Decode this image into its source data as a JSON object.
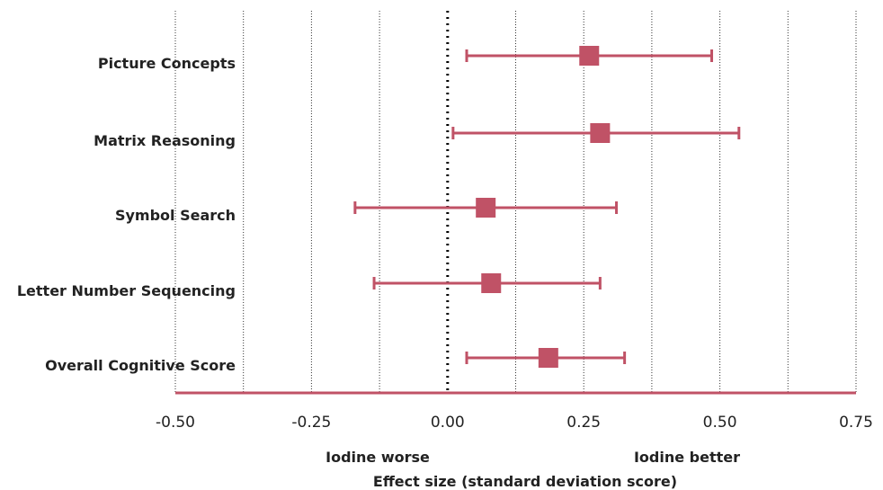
{
  "chart_data": {
    "type": "forest",
    "title": "",
    "xlabel": "Effect size (standard deviation score)",
    "ylabel": "",
    "xlim": [
      -0.5,
      0.75
    ],
    "xticks": [
      "-0.50",
      "-0.25",
      "0.00",
      "0.25",
      "0.50",
      "0.75"
    ],
    "xtick_values": [
      -0.5,
      -0.25,
      0,
      0.25,
      0.5,
      0.75
    ],
    "grid_lines": [
      -0.5,
      -0.375,
      -0.25,
      -0.125,
      0.125,
      0.25,
      0.375,
      0.5,
      0.625,
      0.75
    ],
    "reference_line": 0,
    "left_note": "Iodine worse",
    "right_note": "Iodine better",
    "color": "#c05266",
    "series": [
      {
        "label": "Picture Concepts",
        "estimate": 0.26,
        "lower": 0.035,
        "upper": 0.485
      },
      {
        "label": "Matrix Reasoning",
        "estimate": 0.28,
        "lower": 0.01,
        "upper": 0.535
      },
      {
        "label": "Symbol Search",
        "estimate": 0.07,
        "lower": -0.17,
        "upper": 0.31
      },
      {
        "label": "Letter Number Sequencing",
        "estimate": 0.08,
        "lower": -0.135,
        "upper": 0.28
      },
      {
        "label": "Overall Cognitive Score",
        "estimate": 0.185,
        "lower": 0.035,
        "upper": 0.325
      }
    ]
  }
}
